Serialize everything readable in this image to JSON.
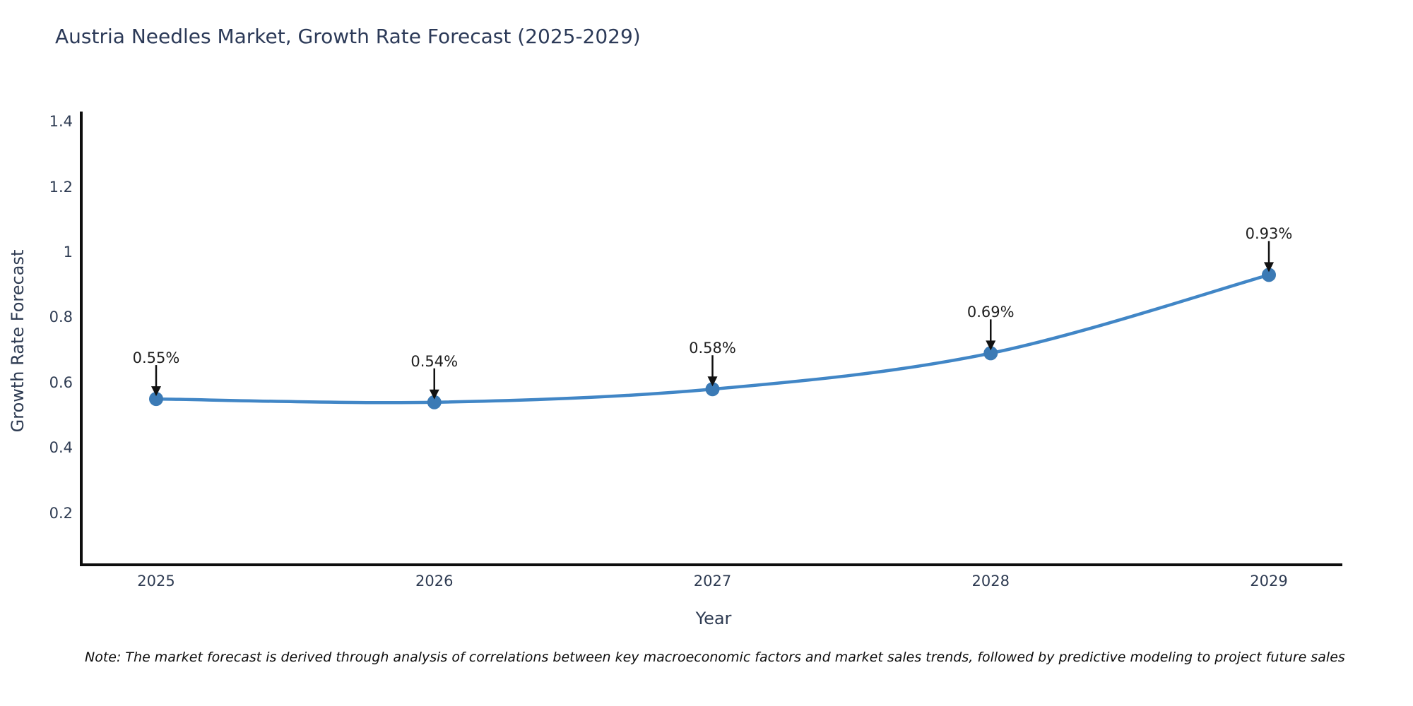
{
  "chart_data": {
    "type": "line",
    "title": "Austria Needles Market, Growth Rate Forecast (2025-2029)",
    "xlabel": "Year",
    "ylabel": "Growth Rate Forecast",
    "categories": [
      2025,
      2026,
      2027,
      2028,
      2029
    ],
    "series": [
      {
        "name": "Growth Rate Forecast",
        "values": [
          0.55,
          0.54,
          0.58,
          0.69,
          0.93
        ]
      }
    ],
    "point_labels": [
      "0.55%",
      "0.54%",
      "0.58%",
      "0.69%",
      "0.93%"
    ],
    "x_tick_labels": [
      "2025",
      "2026",
      "2027",
      "2028",
      "2029"
    ],
    "y_ticks": [
      0.2,
      0.4,
      0.6,
      0.8,
      1,
      1.2,
      1.4
    ],
    "y_tick_labels": [
      "0.2",
      "0.4",
      "0.6",
      "0.8",
      "1",
      "1.2",
      "1.4"
    ],
    "ylim": [
      0.042,
      1.426
    ],
    "grid": false,
    "legend": "none",
    "smooth": true
  },
  "footnote": "Note: The market forecast is derived through analysis of correlations between key macroeconomic factors and market sales trends, followed by predictive modeling to project future sales",
  "colors": {
    "background": "#ffffff",
    "title_text": "#2c3a58",
    "axis_text": "#2e3b52",
    "spine": "#0d0d0d",
    "line": "#4186c6",
    "marker": "#3b7ab5",
    "annotation_arrow": "#111111",
    "annotation_text": "#1f1f1f"
  }
}
